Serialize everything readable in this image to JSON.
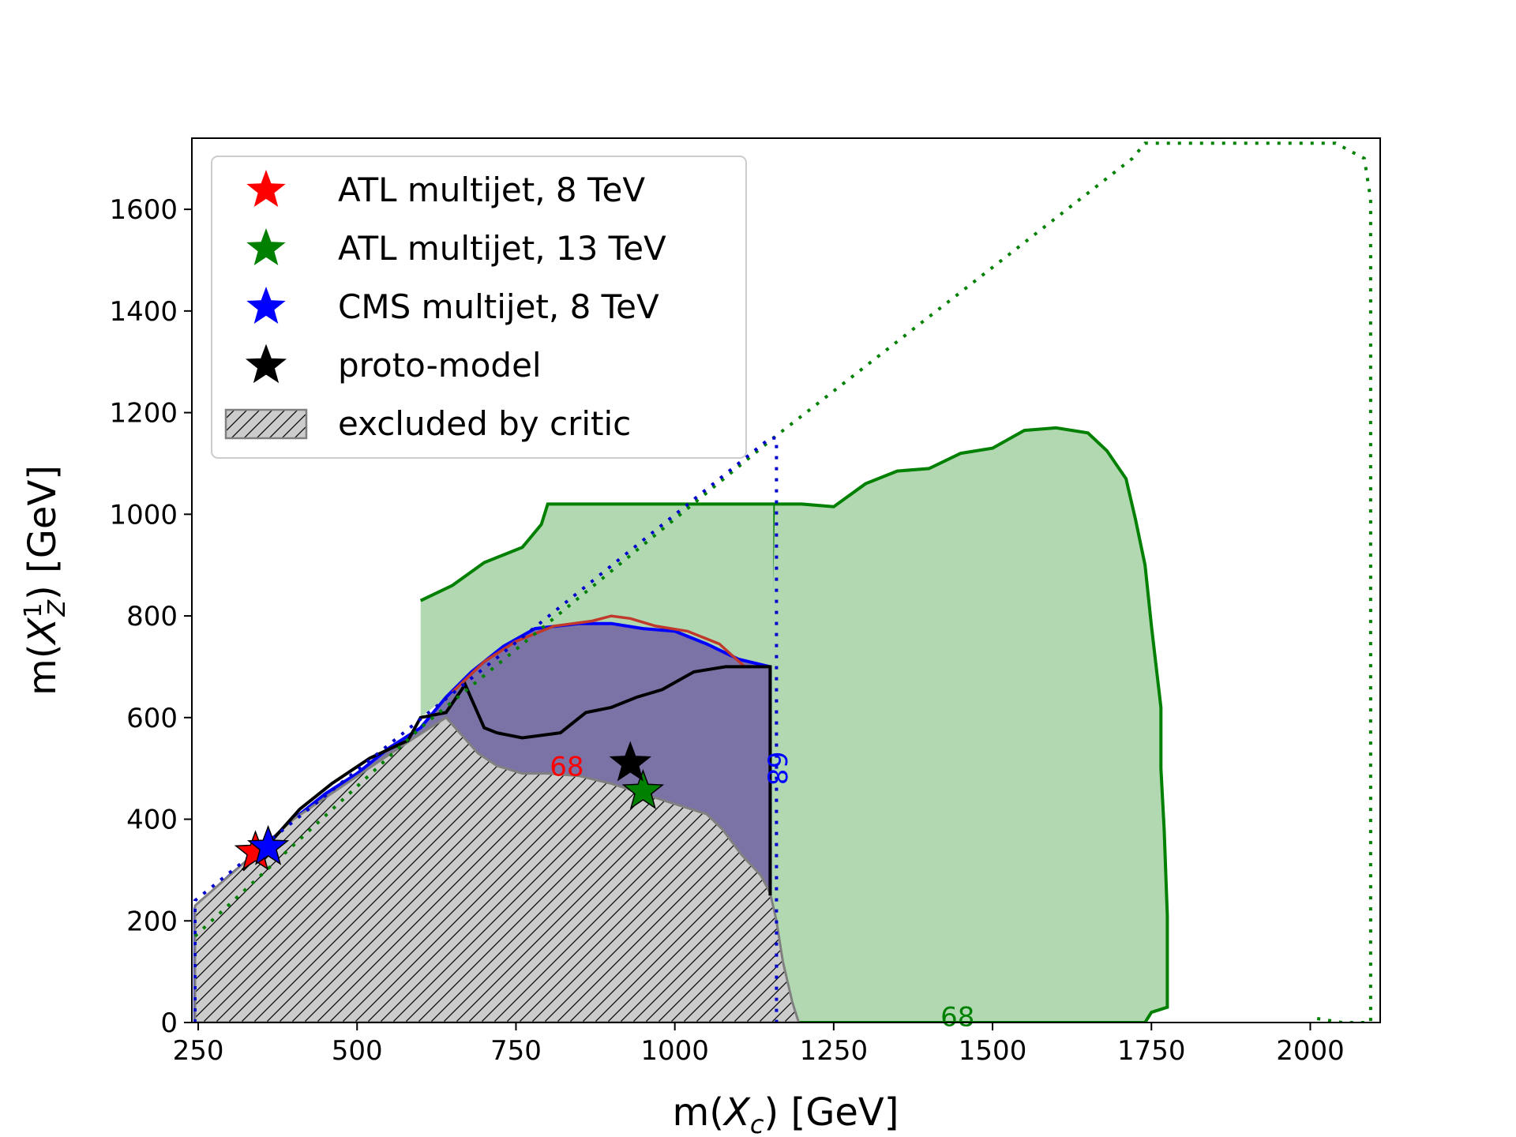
{
  "chart_data": {
    "type": "contour",
    "xlabel": "m(X_c) [GeV]",
    "ylabel": "m(X_Z^1) [GeV]",
    "xlim": [
      240,
      2110
    ],
    "ylim": [
      0,
      1740
    ],
    "xticks": [
      250,
      500,
      750,
      1000,
      1250,
      1500,
      1750,
      2000
    ],
    "yticks": [
      0,
      200,
      400,
      600,
      800,
      1000,
      1200,
      1400,
      1600
    ],
    "grid": false,
    "legend_position": "upper-left",
    "legend": [
      {
        "label": "ATL multijet, 8 TeV",
        "marker": "star",
        "color": "#ff0000"
      },
      {
        "label": "ATL multijet, 13 TeV",
        "marker": "star",
        "color": "#008000"
      },
      {
        "label": "CMS multijet, 8 TeV",
        "marker": "star",
        "color": "#0000ff"
      },
      {
        "label": "proto-model",
        "marker": "star",
        "color": "#000000"
      },
      {
        "label": "excluded by critic",
        "marker": "hatched-box",
        "color": "#bfbfbf"
      }
    ],
    "contour_labels": [
      {
        "text": "68",
        "color": "#ff0000",
        "x": 830,
        "y": 500,
        "rotation": 0
      },
      {
        "text": "68",
        "color": "#0000ff",
        "x": 1158,
        "y": 500,
        "rotation": 90
      },
      {
        "text": "68",
        "color": "#008000",
        "x": 1445,
        "y": 8,
        "rotation": 0
      }
    ],
    "best_fit_points": [
      {
        "name": "ATL multijet, 8 TeV",
        "color": "#ff0000",
        "x": 340,
        "y": 335
      },
      {
        "name": "CMS multijet, 8 TeV",
        "color": "#0000ff",
        "x": 360,
        "y": 345
      },
      {
        "name": "ATL multijet, 13 TeV",
        "color": "#008000",
        "x": 950,
        "y": 455
      },
      {
        "name": "proto-model",
        "color": "#000000",
        "x": 930,
        "y": 510
      }
    ],
    "regions": {
      "critic_excluded": [
        [
          245,
          0
        ],
        [
          245,
          230
        ],
        [
          300,
          290
        ],
        [
          400,
          400
        ],
        [
          530,
          510
        ],
        [
          590,
          560
        ],
        [
          640,
          600
        ],
        [
          690,
          530
        ],
        [
          720,
          505
        ],
        [
          760,
          490
        ],
        [
          800,
          490
        ],
        [
          850,
          485
        ],
        [
          900,
          470
        ],
        [
          950,
          450
        ],
        [
          1000,
          430
        ],
        [
          1050,
          410
        ],
        [
          1075,
          380
        ],
        [
          1105,
          330
        ],
        [
          1135,
          290
        ],
        [
          1150,
          255
        ],
        [
          1160,
          200
        ],
        [
          1170,
          120
        ],
        [
          1185,
          40
        ],
        [
          1195,
          0
        ]
      ],
      "cms_8tev_68": [
        [
          245,
          0
        ],
        [
          245,
          225
        ],
        [
          300,
          290
        ],
        [
          350,
          340
        ],
        [
          400,
          400
        ],
        [
          450,
          450
        ],
        [
          500,
          490
        ],
        [
          550,
          540
        ],
        [
          600,
          580
        ],
        [
          640,
          640
        ],
        [
          680,
          690
        ],
        [
          730,
          740
        ],
        [
          780,
          775
        ],
        [
          850,
          785
        ],
        [
          900,
          785
        ],
        [
          950,
          775
        ],
        [
          1000,
          770
        ],
        [
          1050,
          745
        ],
        [
          1100,
          715
        ],
        [
          1150,
          700
        ],
        [
          1150,
          0
        ]
      ],
      "atl_8tev_68": [
        [
          650,
          650
        ],
        [
          700,
          710
        ],
        [
          750,
          750
        ],
        [
          810,
          780
        ],
        [
          870,
          790
        ],
        [
          900,
          800
        ],
        [
          930,
          795
        ],
        [
          970,
          780
        ],
        [
          1020,
          770
        ],
        [
          1070,
          745
        ],
        [
          1110,
          700
        ],
        [
          1150,
          700
        ]
      ],
      "atl_13tev_68": [
        [
          1150,
          0
        ],
        [
          1150,
          700
        ],
        [
          1155,
          1020
        ],
        [
          1200,
          1020
        ],
        [
          1250,
          1015
        ],
        [
          1300,
          1060
        ],
        [
          1350,
          1085
        ],
        [
          1400,
          1090
        ],
        [
          1450,
          1120
        ],
        [
          1500,
          1130
        ],
        [
          1550,
          1165
        ],
        [
          1600,
          1170
        ],
        [
          1650,
          1160
        ],
        [
          1680,
          1125
        ],
        [
          1710,
          1070
        ],
        [
          1725,
          990
        ],
        [
          1740,
          900
        ],
        [
          1750,
          780
        ],
        [
          1765,
          620
        ],
        [
          1765,
          500
        ],
        [
          1770,
          380
        ],
        [
          1775,
          210
        ],
        [
          1775,
          30
        ],
        [
          1750,
          20
        ],
        [
          1740,
          0
        ]
      ],
      "atl_13tev_68_upper": [
        [
          600,
          830
        ],
        [
          650,
          860
        ],
        [
          700,
          905
        ],
        [
          760,
          935
        ],
        [
          770,
          950
        ],
        [
          790,
          980
        ],
        [
          800,
          1020
        ],
        [
          1155,
          1020
        ]
      ],
      "proto_model_boundary": [
        [
          320,
          300
        ],
        [
          360,
          350
        ],
        [
          410,
          420
        ],
        [
          460,
          470
        ],
        [
          520,
          520
        ],
        [
          580,
          555
        ],
        [
          600,
          600
        ],
        [
          640,
          610
        ],
        [
          670,
          665
        ],
        [
          700,
          580
        ],
        [
          720,
          570
        ],
        [
          760,
          560
        ],
        [
          820,
          570
        ],
        [
          860,
          610
        ],
        [
          900,
          620
        ],
        [
          940,
          640
        ],
        [
          980,
          655
        ],
        [
          1030,
          690
        ],
        [
          1080,
          700
        ],
        [
          1135,
          700
        ],
        [
          1150,
          700
        ],
        [
          1150,
          250
        ]
      ],
      "atl_13tev_95_dotted": [
        [
          245,
          170
        ],
        [
          600,
          580
        ],
        [
          1155,
          1150
        ],
        [
          1720,
          1700
        ],
        [
          1740,
          1730
        ],
        [
          2040,
          1730
        ],
        [
          2085,
          1700
        ],
        [
          2095,
          1620
        ],
        [
          2095,
          0
        ],
        [
          2050,
          0
        ],
        [
          2000,
          10
        ]
      ],
      "cms_8tev_95_dotted": [
        [
          245,
          0
        ],
        [
          245,
          240
        ],
        [
          1150,
          1150
        ],
        [
          1160,
          1150
        ],
        [
          1160,
          0
        ]
      ]
    }
  }
}
